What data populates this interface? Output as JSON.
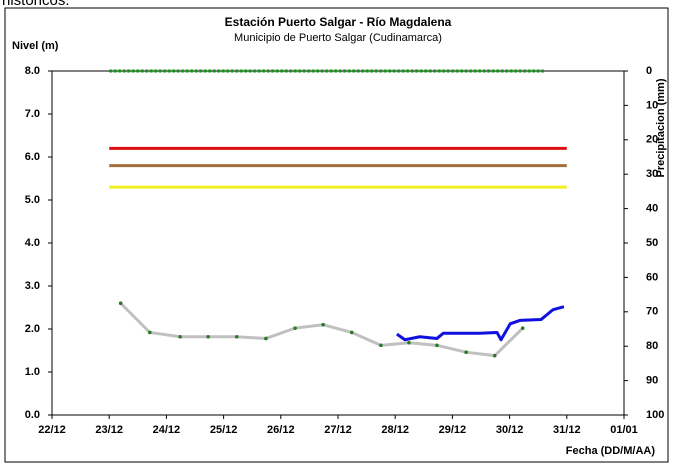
{
  "top_text": "históricos.",
  "chart_data": {
    "type": "line",
    "title": "Estación Puerto Salgar - Río Magdalena",
    "subtitle": "Municipio de Puerto Salgar (Cudinamarca)",
    "y_label": "Nivel (m)",
    "y2_label": "Precipitacion (mm)",
    "x_label": "Fecha (DD/M/AA)",
    "xlim": [
      0,
      10
    ],
    "xticks": [
      {
        "value": 0,
        "label": "22/12"
      },
      {
        "value": 1,
        "label": "23/12"
      },
      {
        "value": 2,
        "label": "24/12"
      },
      {
        "value": 3,
        "label": "25/12"
      },
      {
        "value": 4,
        "label": "26/12"
      },
      {
        "value": 5,
        "label": "27/12"
      },
      {
        "value": 6,
        "label": "28/12"
      },
      {
        "value": 7,
        "label": "29/12"
      },
      {
        "value": 8,
        "label": "30/12"
      },
      {
        "value": 9,
        "label": "31/12"
      },
      {
        "value": 10,
        "label": "01/01"
      }
    ],
    "ylim": [
      0,
      8
    ],
    "yticks": [
      {
        "value": 0,
        "label": "0.0"
      },
      {
        "value": 1,
        "label": "1.0"
      },
      {
        "value": 2,
        "label": "2.0"
      },
      {
        "value": 3,
        "label": "3.0"
      },
      {
        "value": 4,
        "label": "4.0"
      },
      {
        "value": 5,
        "label": "5.0"
      },
      {
        "value": 6,
        "label": "6.0"
      },
      {
        "value": 7,
        "label": "7.0"
      },
      {
        "value": 8,
        "label": "8.0"
      }
    ],
    "y2lim": [
      100,
      0
    ],
    "y2ticks": [
      0,
      10,
      20,
      30,
      40,
      50,
      60,
      70,
      80,
      90,
      100
    ],
    "series": [
      {
        "color": "#1a8f1a",
        "dashed": true,
        "x": [
          1,
          8.6
        ],
        "values": [
          8,
          8
        ]
      },
      {
        "color": "#e01010",
        "x": [
          1,
          9
        ],
        "values": [
          6.2,
          6.2
        ]
      },
      {
        "color": "#a0703a",
        "x": [
          1,
          9
        ],
        "values": [
          5.8,
          5.8
        ]
      },
      {
        "color": "#f0f020",
        "x": [
          1,
          9
        ],
        "values": [
          5.3,
          5.3
        ]
      },
      {
        "color": "#c0c0c0",
        "marker_color": "#2a7a2a",
        "x": [
          1.2,
          1.71,
          2.24,
          2.73,
          3.23,
          3.74,
          4.25,
          4.74,
          5.24,
          5.75,
          6.24,
          6.73,
          7.24,
          7.74,
          8.23
        ],
        "values": [
          2.6,
          1.92,
          1.82,
          1.82,
          1.82,
          1.78,
          2.02,
          2.1,
          1.92,
          1.62,
          1.68,
          1.62,
          1.46,
          1.38,
          2.02
        ]
      },
      {
        "color": "#1010e0",
        "x": [
          6.03,
          6.17,
          6.43,
          6.73,
          6.84,
          7.48,
          7.78,
          7.85,
          8.01,
          8.18,
          8.55,
          8.76,
          8.95
        ],
        "values": [
          1.88,
          1.75,
          1.82,
          1.78,
          1.9,
          1.9,
          1.92,
          1.75,
          2.12,
          2.2,
          2.22,
          2.45,
          2.52
        ]
      }
    ]
  }
}
